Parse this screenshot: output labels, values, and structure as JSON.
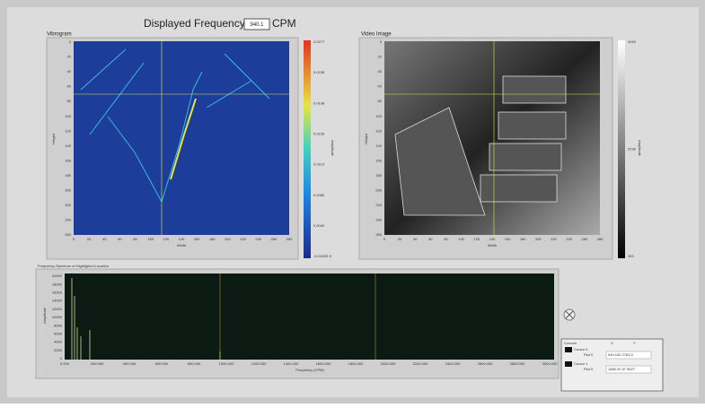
{
  "header": {
    "vibrogram_title": "Vibrogram",
    "frequency_label": "Displayed Frequency",
    "frequency_value": "940.1",
    "frequency_unit": "CPM",
    "video_title": "Video Image"
  },
  "vibrogram": {
    "x_label": "Width",
    "y_label": "Height",
    "colorbar_label": "Amplitude",
    "x_ticks": [
      "0",
      "20",
      "40",
      "60",
      "80",
      "100",
      "120",
      "140",
      "160",
      "180",
      "200",
      "220",
      "240",
      "260",
      "280"
    ],
    "y_ticks": [
      "0",
      "20",
      "40",
      "60",
      "80",
      "100",
      "120",
      "140",
      "160",
      "180",
      "200",
      "220",
      "240",
      "260"
    ],
    "colorbar_ticks": [
      "0.0277",
      "0.0238",
      "0.0198",
      "0.0159",
      "0.0119",
      "0.0080",
      "0.0040",
      "-5.2100E-9"
    ]
  },
  "video": {
    "x_label": "Width",
    "y_label": "Height",
    "colorbar_label": "Amplitude",
    "x_ticks": [
      "0",
      "20",
      "40",
      "60",
      "80",
      "100",
      "120",
      "140",
      "160",
      "180",
      "200",
      "220",
      "240",
      "260",
      "280"
    ],
    "y_ticks": [
      "0",
      "20",
      "40",
      "60",
      "80",
      "100",
      "120",
      "140",
      "160",
      "180",
      "200",
      "220",
      "240",
      "260"
    ],
    "colorbar_ticks": [
      "4053",
      "2236",
      "353"
    ]
  },
  "spectrum": {
    "title": "Frequency Spectrum of Highlighted Location",
    "x_label": "Frequency (CPM)",
    "y_label": "Amplitude",
    "x_ticks": [
      "0.000",
      "200.000",
      "400.000",
      "600.000",
      "800.000",
      "1000.000",
      "1200.000",
      "1400.000",
      "1600.000",
      "1800.000",
      "2000.000",
      "2200.000",
      "2400.000",
      "2600.000",
      "2800.000",
      "3000.000"
    ],
    "y_ticks": [
      "0",
      "2000",
      "4000",
      "6000",
      "8000",
      "10000",
      "12000",
      "14000",
      "16000",
      "18000",
      "20000"
    ]
  },
  "cursors": {
    "title": "Cursors",
    "headers": [
      "X",
      "Y"
    ],
    "rows": [
      {
        "name": "Cursor 0",
        "plot": "Plot 0",
        "value": "940.100 2763.0"
      },
      {
        "name": "Cursor 1",
        "plot": "Plot 0",
        "value": "1880.20 37.9027"
      }
    ]
  }
}
